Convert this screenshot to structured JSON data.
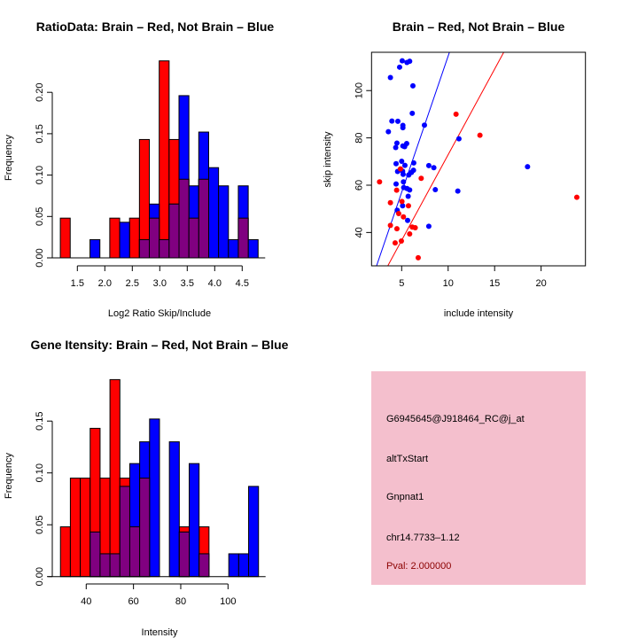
{
  "colors": {
    "red": "#ff0000",
    "blue": "#0000ff",
    "overlap": "#800080",
    "panel": "#f4bfcd",
    "pval": "#8b0000"
  },
  "chart_data": [
    {
      "type": "bar",
      "title": "RatioData: Brain – Red, Not Brain – Blue",
      "xlabel": "Log2 Ratio Skip/Include",
      "ylabel": "Frequency",
      "bin_start": 1.19,
      "bin_width": 0.18,
      "xticks": [
        1.5,
        2.0,
        2.5,
        3.0,
        3.5,
        4.0,
        4.5
      ],
      "xtick_labels": [
        "1.5",
        "2.0",
        "2.5",
        "3.0",
        "3.5",
        "4.0",
        "4.5"
      ],
      "yticks": [
        0,
        0.05,
        0.1,
        0.15,
        0.2
      ],
      "ytick_labels": [
        "0.00",
        "0.05",
        "0.10",
        "0.15",
        "0.20"
      ],
      "series": [
        {
          "name": "Brain",
          "color": "red",
          "values": [
            0.048,
            0,
            0,
            0,
            0,
            0.048,
            0,
            0.048,
            0.143,
            0.048,
            0.238,
            0.143,
            0.095,
            0.048,
            0.095,
            0,
            0,
            0,
            0.048,
            0
          ]
        },
        {
          "name": "Not Brain",
          "color": "blue",
          "values": [
            0,
            0,
            0,
            0.022,
            0,
            0,
            0.043,
            0,
            0.022,
            0.065,
            0.022,
            0.065,
            0.196,
            0.087,
            0.152,
            0.109,
            0.087,
            0.022,
            0.087,
            0.022
          ]
        }
      ]
    },
    {
      "type": "scatter",
      "title": "Brain – Red, Not Brain – Blue",
      "xlabel": "include intensity",
      "ylabel": "skip intensity",
      "xlim": [
        1.76,
        24.77
      ],
      "ylim": [
        25.9,
        116.2
      ],
      "xticks": [
        5,
        10,
        15,
        20
      ],
      "xtick_labels": [
        "5",
        "10",
        "15",
        "20"
      ],
      "yticks": [
        40,
        60,
        80,
        100
      ],
      "ytick_labels": [
        "40",
        "60",
        "80",
        "100"
      ],
      "series": [
        {
          "name": "Not Brain",
          "color": "blue",
          "fit": {
            "slope": 11.52,
            "intercept": -0.6
          },
          "points": [
            [
              5.06,
              112.6
            ],
            [
              5.86,
              112.4
            ],
            [
              5.57,
              111.9
            ],
            [
              4.78,
              109.9
            ],
            [
              3.79,
              105.5
            ],
            [
              6.21,
              102
            ],
            [
              6.14,
              90.4
            ],
            [
              3.95,
              87.1
            ],
            [
              4.59,
              87
            ],
            [
              5.13,
              85.3
            ],
            [
              5.13,
              84.3
            ],
            [
              7.45,
              85.4
            ],
            [
              3.57,
              82.6
            ],
            [
              4.49,
              77.8
            ],
            [
              4.36,
              75.9
            ],
            [
              5.13,
              76.6
            ],
            [
              5.54,
              77.6
            ],
            [
              5.32,
              76.3
            ],
            [
              11.16,
              79.6
            ],
            [
              5.0,
              70.1
            ],
            [
              4.4,
              69.1
            ],
            [
              5.35,
              68.4
            ],
            [
              6.3,
              69.4
            ],
            [
              7.92,
              68.3
            ],
            [
              8.46,
              67.4
            ],
            [
              4.56,
              65.8
            ],
            [
              5.1,
              65.9
            ],
            [
              5.16,
              64.6
            ],
            [
              5.76,
              64.3
            ],
            [
              6.05,
              65.4
            ],
            [
              6.27,
              66.3
            ],
            [
              18.54,
              67.8
            ],
            [
              4.4,
              60.5
            ],
            [
              5.19,
              61.4
            ],
            [
              5.22,
              59
            ],
            [
              5.57,
              58.6
            ],
            [
              5.86,
              58
            ],
            [
              8.62,
              58.1
            ],
            [
              11.04,
              57.5
            ],
            [
              5.7,
              55.3
            ],
            [
              5.1,
              51.3
            ],
            [
              4.52,
              49.4
            ],
            [
              5.64,
              45.1
            ],
            [
              7.92,
              42.6
            ]
          ]
        },
        {
          "name": "Brain",
          "color": "red",
          "fit": {
            "slope": 7.24,
            "intercept": 0.5
          },
          "points": [
            [
              2.62,
              61.4
            ],
            [
              4.87,
              66.9
            ],
            [
              7.1,
              62.9
            ],
            [
              10.85,
              90
            ],
            [
              13.42,
              81.1
            ],
            [
              4.46,
              57.9
            ],
            [
              3.79,
              52.6
            ],
            [
              5.03,
              53.1
            ],
            [
              5.73,
              51.3
            ],
            [
              4.68,
              48
            ],
            [
              5.19,
              46.6
            ],
            [
              3.79,
              43
            ],
            [
              4.49,
              41.6
            ],
            [
              6.14,
              42.3
            ],
            [
              6.46,
              42
            ],
            [
              5.86,
              39.4
            ],
            [
              4.3,
              35.6
            ],
            [
              4.97,
              36.4
            ],
            [
              6.78,
              29.3
            ],
            [
              23.84,
              54.9
            ]
          ]
        }
      ]
    },
    {
      "type": "bar",
      "title": "Gene Itensity: Brain – Red, Not Brain – Blue",
      "xlabel": "Intensity",
      "ylabel": "Frequency",
      "bin_start": 29.1,
      "bin_width": 4.19,
      "xticks": [
        40,
        60,
        80,
        100
      ],
      "xtick_labels": [
        "40",
        "60",
        "80",
        "100"
      ],
      "yticks": [
        0,
        0.05,
        0.1,
        0.15
      ],
      "ytick_labels": [
        "0.00",
        "0.05",
        "0.10",
        "0.15"
      ],
      "series": [
        {
          "name": "Brain",
          "color": "red",
          "values": [
            0.048,
            0.095,
            0.095,
            0.143,
            0.095,
            0.19,
            0.095,
            0.048,
            0.095,
            0,
            0,
            0,
            0.048,
            0,
            0.048,
            0,
            0,
            0,
            0,
            0
          ]
        },
        {
          "name": "Not Brain",
          "color": "blue",
          "values": [
            0,
            0,
            0,
            0.043,
            0.022,
            0.022,
            0.087,
            0.109,
            0.13,
            0.152,
            0,
            0.13,
            0.043,
            0.109,
            0.022,
            0,
            0,
            0.022,
            0.022,
            0.087
          ]
        }
      ]
    }
  ],
  "info_panel": {
    "lines": [
      "G6945645@J918464_RC@j_at",
      "altTxStart",
      "Gnpnat1",
      "chr14.7733–1.12"
    ],
    "pval": "Pval: 2.000000"
  }
}
